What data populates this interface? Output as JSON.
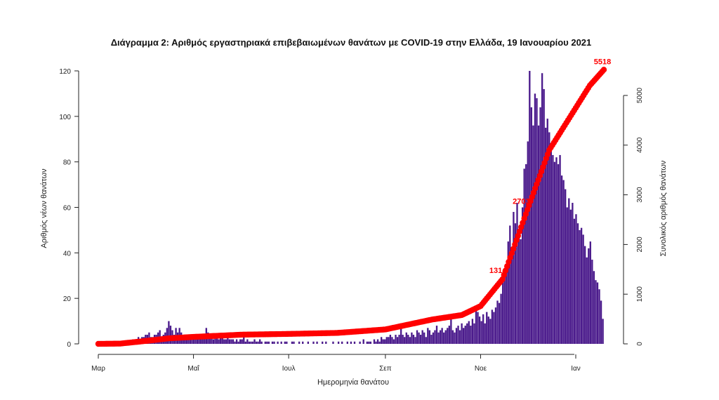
{
  "chart_data": {
    "type": "bar",
    "title": "Διάγραμμα 2: Αριθμός εργαστηριακά επιβεβαιωμένων θανάτων με COVID-19 στην Ελλάδα, 19 Ιανουαρίου 2021",
    "xlabel": "Ημερομηνία θανάτου",
    "ylabel": "Αριθμός νέων θανάτων",
    "y2label": "Συνολικός αριθμός θανάτων",
    "x_start": "2020-03-01",
    "x_end": "2021-01-19",
    "x_ticks": [
      {
        "label": "Μαρ",
        "date": "2020-03-01"
      },
      {
        "label": "Μαΐ",
        "date": "2020-05-01"
      },
      {
        "label": "Ιουλ",
        "date": "2020-07-01"
      },
      {
        "label": "Σεπ",
        "date": "2020-09-01"
      },
      {
        "label": "Νοε",
        "date": "2020-11-01"
      },
      {
        "label": "Ιαν",
        "date": "2021-01-01"
      }
    ],
    "ylim": [
      0,
      120
    ],
    "y_ticks": [
      0,
      20,
      40,
      60,
      80,
      100,
      120
    ],
    "y2lim": [
      0,
      5000
    ],
    "y2_ticks": [
      0,
      1000,
      2000,
      3000,
      4000,
      5000
    ],
    "grid": false,
    "bar_color": "#4b1b8c",
    "line_color": "#ff0000",
    "series": [
      {
        "type": "bar",
        "values": [
          0,
          0,
          0,
          0,
          0,
          0,
          0,
          0,
          0,
          0,
          0,
          0,
          0,
          0,
          0,
          0,
          0,
          1,
          0,
          2,
          1,
          1,
          3,
          2,
          3,
          3,
          4,
          4,
          5,
          3,
          3,
          4,
          4,
          5,
          6,
          3,
          4,
          5,
          7,
          10,
          8,
          6,
          4,
          7,
          5,
          7,
          5,
          3,
          4,
          3,
          2,
          4,
          3,
          3,
          2,
          3,
          3,
          4,
          4,
          4,
          7,
          5,
          3,
          3,
          2,
          3,
          3,
          2,
          3,
          3,
          2,
          2,
          3,
          2,
          2,
          2,
          1,
          2,
          1,
          2,
          2,
          3,
          1,
          2,
          1,
          1,
          1,
          2,
          1,
          1,
          2,
          1,
          0,
          1,
          1,
          1,
          0,
          1,
          1,
          0,
          1,
          0,
          1,
          0,
          1,
          1,
          0,
          0,
          1,
          1,
          0,
          0,
          1,
          0,
          1,
          0,
          0,
          1,
          0,
          0,
          1,
          0,
          1,
          0,
          0,
          1,
          0,
          1,
          0,
          0,
          0,
          1,
          0,
          0,
          1,
          0,
          1,
          0,
          0,
          1,
          0,
          1,
          0,
          1,
          0,
          0,
          1,
          0,
          2,
          0,
          1,
          1,
          1,
          0,
          2,
          1,
          2,
          1,
          3,
          2,
          2,
          3,
          3,
          4,
          3,
          2,
          4,
          3,
          4,
          8,
          4,
          3,
          5,
          4,
          3,
          5,
          4,
          3,
          6,
          5,
          4,
          6,
          5,
          3,
          7,
          6,
          4,
          5,
          6,
          8,
          5,
          6,
          7,
          5,
          6,
          7,
          8,
          12,
          6,
          5,
          7,
          8,
          6,
          9,
          7,
          8,
          9,
          10,
          8,
          11,
          9,
          16,
          14,
          12,
          10,
          13,
          9,
          14,
          12,
          11,
          15,
          14,
          16,
          19,
          18,
          22,
          27,
          30,
          35,
          45,
          52,
          42,
          58,
          53,
          62,
          48,
          46,
          60,
          77,
          79,
          89,
          120,
          104,
          96,
          110,
          108,
          96,
          104,
          119,
          112,
          95,
          99,
          93,
          85,
          83,
          80,
          82,
          79,
          83,
          74,
          72,
          68,
          60,
          64,
          59,
          62,
          55,
          57,
          53,
          50,
          51,
          48,
          43,
          38,
          42,
          45,
          37,
          32,
          28,
          27,
          24,
          19,
          11
        ]
      },
      {
        "type": "line",
        "name": "",
        "points": [
          {
            "date": "2020-03-01",
            "y": 0
          },
          {
            "date": "2020-03-15",
            "y": 5
          },
          {
            "date": "2020-04-01",
            "y": 60
          },
          {
            "date": "2020-04-15",
            "y": 110
          },
          {
            "date": "2020-05-01",
            "y": 140
          },
          {
            "date": "2020-06-01",
            "y": 185
          },
          {
            "date": "2020-07-01",
            "y": 200
          },
          {
            "date": "2020-08-01",
            "y": 220
          },
          {
            "date": "2020-09-01",
            "y": 290
          },
          {
            "date": "2020-10-01",
            "y": 490
          },
          {
            "date": "2020-10-20",
            "y": 580
          },
          {
            "date": "2020-11-01",
            "y": 760
          },
          {
            "date": "2020-11-15",
            "y": 1300
          },
          {
            "date": "2020-12-01",
            "y": 2700
          },
          {
            "date": "2020-12-15",
            "y": 3900
          },
          {
            "date": "2021-01-01",
            "y": 4750
          },
          {
            "date": "2021-01-10",
            "y": 5200
          },
          {
            "date": "2021-01-19",
            "y": 5518
          }
        ]
      }
    ],
    "annotations": [
      {
        "text": "5518",
        "date": "2021-01-19",
        "y2": 5518
      },
      {
        "text": "2703",
        "date": "2020-11-28",
        "y2": 2703
      },
      {
        "text": "1314",
        "date": "2020-11-13",
        "y2": 1314
      }
    ]
  }
}
